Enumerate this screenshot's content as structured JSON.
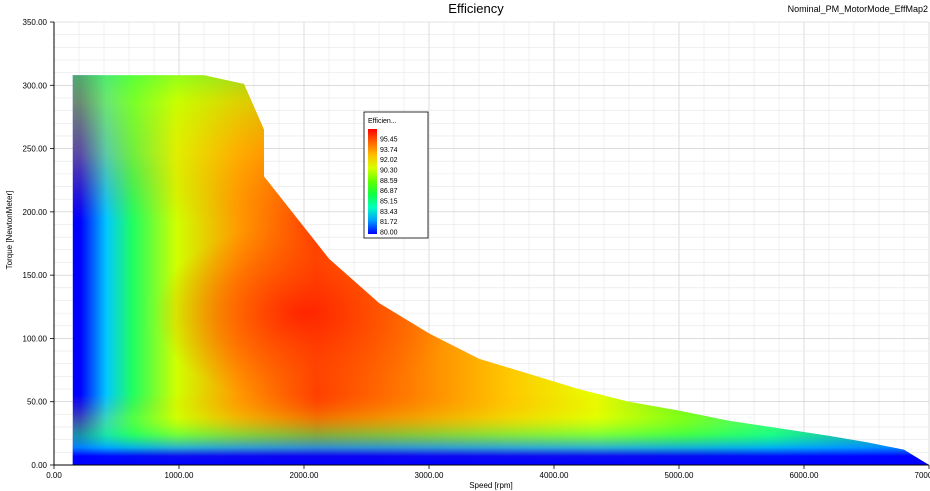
{
  "chart_data": {
    "type": "heatmap",
    "title": "Efficiency",
    "subtitle": "Nominal_PM_MotorMode_EffMap2",
    "xlabel": "Speed [rpm]",
    "ylabel": "Torque [NewtonMeter]",
    "xlim": [
      0,
      7000
    ],
    "ylim": [
      0,
      350
    ],
    "x_ticks": [
      "0.00",
      "1000.00",
      "2000.00",
      "3000.00",
      "4000.00",
      "5000.00",
      "6000.00",
      "7000.00"
    ],
    "y_ticks": [
      "0.00",
      "50.00",
      "100.00",
      "150.00",
      "200.00",
      "250.00",
      "300.00",
      "350.00"
    ],
    "grid": true,
    "legend": {
      "title": "Efficien...",
      "placement": "top-center",
      "levels": [
        "95.45",
        "93.74",
        "92.02",
        "90.30",
        "88.59",
        "86.87",
        "85.15",
        "83.43",
        "81.72",
        "80.00"
      ],
      "colors": [
        "#ff0000",
        "#ff6a00",
        "#ffc000",
        "#d8ff00",
        "#80ff00",
        "#10ff10",
        "#00ffb0",
        "#00d8ff",
        "#0080ff",
        "#0000ff"
      ]
    },
    "operating_envelope": [
      [
        150,
        0
      ],
      [
        150,
        308
      ],
      [
        1200,
        308
      ],
      [
        1520,
        301
      ],
      [
        1680,
        265
      ],
      [
        1680,
        228
      ],
      [
        2200,
        163
      ],
      [
        2600,
        128
      ],
      [
        3000,
        104
      ],
      [
        3400,
        84
      ],
      [
        3800,
        72
      ],
      [
        4200,
        60
      ],
      [
        4600,
        50
      ],
      [
        5000,
        43
      ],
      [
        5400,
        35
      ],
      [
        5800,
        29
      ],
      [
        6200,
        23
      ],
      [
        6500,
        18
      ],
      [
        6800,
        12
      ],
      [
        7000,
        0
      ]
    ],
    "peak_efficiency_region": {
      "speed": 2000,
      "torque": 120,
      "value": 95.45
    },
    "min_efficiency": 80.0
  }
}
